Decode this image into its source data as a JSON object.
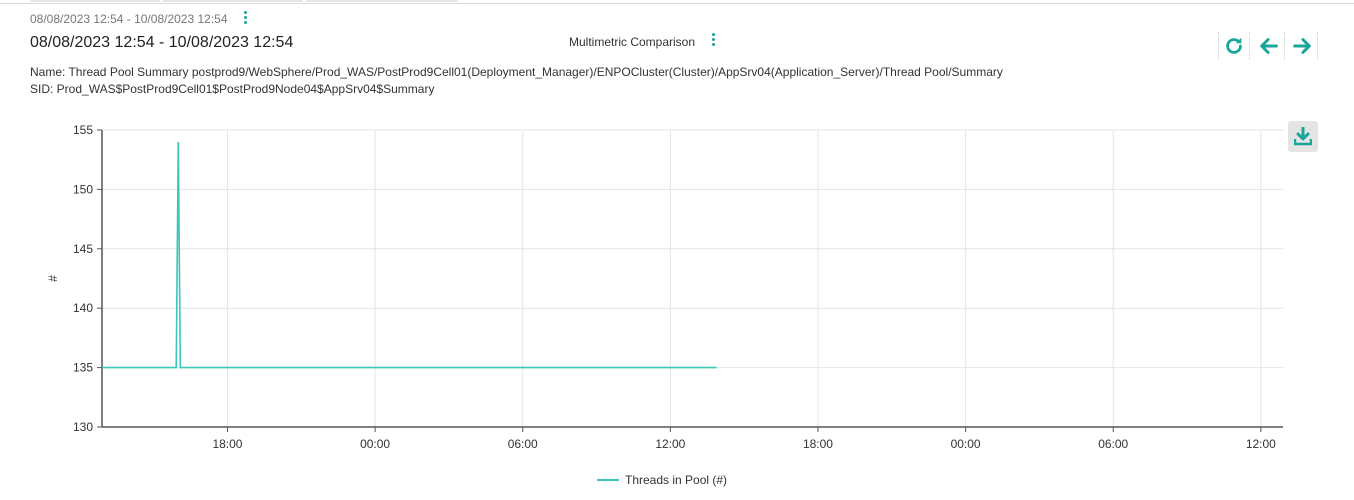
{
  "header": {
    "range_small": "08/08/2023 12:54 - 10/08/2023 12:54",
    "range_title": "08/08/2023 12:54 - 10/08/2023 12:54",
    "comparison_label": "Multimetric Comparison"
  },
  "details": {
    "name_line": "Name: Thread Pool Summary postprod9/WebSphere/Prod_WAS/PostProd9Cell01(Deployment_Manager)/ENPOCluster(Cluster)/AppSrv04(Application_Server)/Thread Pool/Summary",
    "sid_line": "SID: Prod_WAS$PostProd9Cell01$PostProd9Node04$AppSrv04$Summary"
  },
  "toolbar": {
    "icons": [
      "refresh-icon",
      "arrow-left-icon",
      "arrow-right-icon"
    ],
    "download_icon": "download-icon"
  },
  "colors": {
    "accent": "#1aa59a",
    "series": "#3cc6b8"
  },
  "chart_data": {
    "type": "line",
    "ylabel": "#",
    "ylim": [
      130,
      155
    ],
    "yticks": [
      130,
      135,
      140,
      145,
      150,
      155
    ],
    "xlim": [
      "2023-08-08T12:54",
      "2023-08-10T12:54"
    ],
    "xticks": [
      {
        "t": "2023-08-08T18:00",
        "label": "18:00"
      },
      {
        "t": "2023-08-09T00:00",
        "label": "00:00"
      },
      {
        "t": "2023-08-09T06:00",
        "label": "06:00"
      },
      {
        "t": "2023-08-09T12:00",
        "label": "12:00"
      },
      {
        "t": "2023-08-09T18:00",
        "label": "18:00"
      },
      {
        "t": "2023-08-10T00:00",
        "label": "00:00"
      },
      {
        "t": "2023-08-10T06:00",
        "label": "06:00"
      },
      {
        "t": "2023-08-10T12:00",
        "label": "12:00"
      }
    ],
    "grid": true,
    "legend_position": "bottom-center",
    "series": [
      {
        "name": "Threads in Pool (#)",
        "points": [
          {
            "t": "2023-08-08T12:54",
            "y": 135
          },
          {
            "t": "2023-08-08T15:55",
            "y": 135
          },
          {
            "t": "2023-08-08T16:00",
            "y": 154
          },
          {
            "t": "2023-08-08T16:05",
            "y": 135
          },
          {
            "t": "2023-08-09T13:53",
            "y": 135
          }
        ]
      }
    ]
  }
}
